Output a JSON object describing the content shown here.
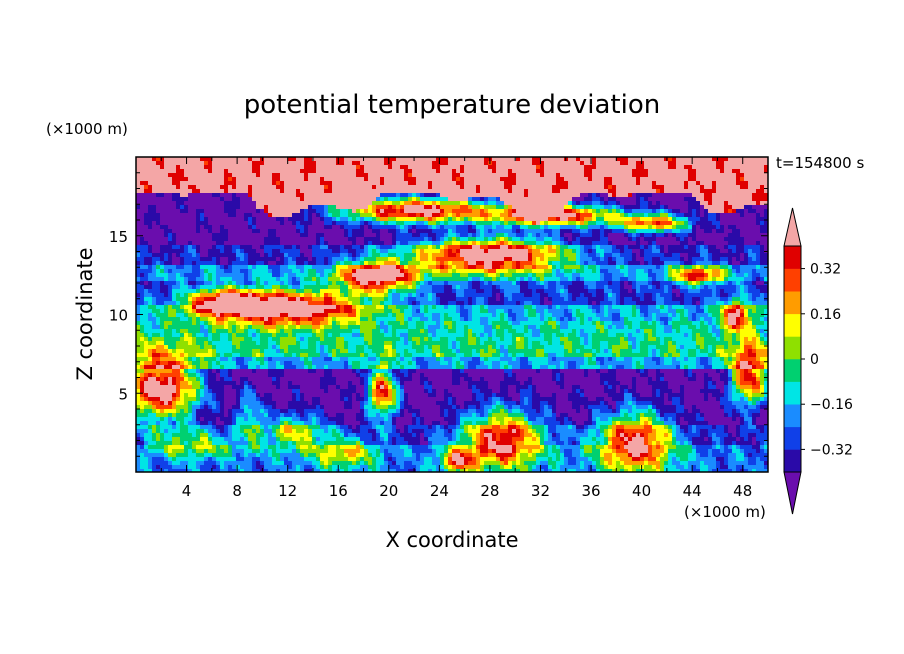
{
  "chart_data": {
    "type": "heatmap",
    "title": "potential temperature deviation",
    "time_label": "t=154800 s",
    "xlabel": "X coordinate",
    "ylabel": "Z coordinate",
    "x_unit": "(×1000 m)",
    "y_unit": "(×1000 m)",
    "xlim": [
      0,
      50
    ],
    "ylim": [
      0,
      20
    ],
    "x_ticks": [
      "4",
      "8",
      "12",
      "16",
      "20",
      "24",
      "28",
      "32",
      "36",
      "40",
      "44",
      "48"
    ],
    "y_ticks": [
      "5",
      "10",
      "15"
    ],
    "x_tick_values": [
      4,
      8,
      12,
      16,
      20,
      24,
      28,
      32,
      36,
      40,
      44,
      48
    ],
    "y_tick_values": [
      5,
      10,
      15
    ],
    "colorbar": {
      "labels": [
        "0.32",
        "0.16",
        "0",
        "−0.16",
        "−0.32"
      ],
      "label_values": [
        0.32,
        0.16,
        0,
        -0.16,
        -0.32
      ],
      "levels": [
        -0.4,
        -0.32,
        -0.24,
        -0.16,
        -0.08,
        0,
        0.08,
        0.16,
        0.24,
        0.32,
        0.4
      ],
      "colors": [
        "#6a0dad",
        "#2a0aa8",
        "#1040e8",
        "#1a8cff",
        "#00e5e5",
        "#00d070",
        "#8fe000",
        "#ffff00",
        "#ff9c00",
        "#ff4000",
        "#e00000",
        "#f4a6a6"
      ],
      "under_color": "#6a0dad",
      "over_color": "#f4a6a6"
    }
  }
}
